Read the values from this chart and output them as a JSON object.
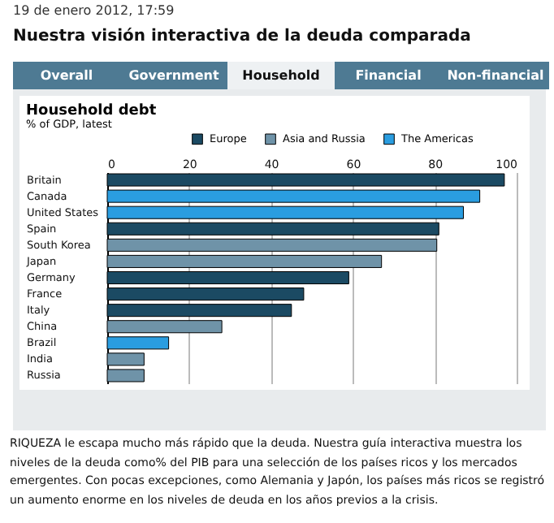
{
  "chart_data": {
    "type": "bar",
    "orientation": "horizontal",
    "title": "Household debt",
    "subtitle": "% of GDP, latest",
    "categories": [
      "Britain",
      "Canada",
      "United States",
      "Spain",
      "South Korea",
      "Japan",
      "Germany",
      "France",
      "Italy",
      "China",
      "Brazil",
      "India",
      "Russia"
    ],
    "series": [
      {
        "name": "Europe",
        "color": "#1b4a63",
        "values": [
          97,
          null,
          null,
          81,
          null,
          null,
          59,
          48,
          45,
          null,
          null,
          null,
          null
        ]
      },
      {
        "name": "Asia and Russia",
        "color": "#6f93a8",
        "values": [
          null,
          null,
          null,
          null,
          80.5,
          67,
          null,
          null,
          null,
          28,
          null,
          9,
          9
        ]
      },
      {
        "name": "The Americas",
        "color": "#2a9de0",
        "values": [
          null,
          91,
          87,
          null,
          null,
          null,
          null,
          null,
          null,
          null,
          15,
          null,
          null
        ]
      }
    ],
    "xlim": [
      0,
      100
    ],
    "xticks": [
      0,
      20,
      40,
      60,
      80,
      100
    ],
    "grid": "x",
    "legend": "top right",
    "annotations": [
      "19 de enero 2012, 17:59",
      "Nuestra visión interactiva de la deuda comparada",
      "Overall",
      "Government",
      "Household",
      "Financial",
      "Non-financial",
      "RIQUEZA le escapa mucho más rápido que la deuda. Nuestra guía interactiva muestra los niveles de la deuda como% del PIB para una selección de los países ricos y los mercados emergentes. Con pocas excepciones, como Alemania y Japón, los países más ricos se registró un aumento enorme en los niveles de deuda en los años previos a la crisis."
    ]
  }
}
